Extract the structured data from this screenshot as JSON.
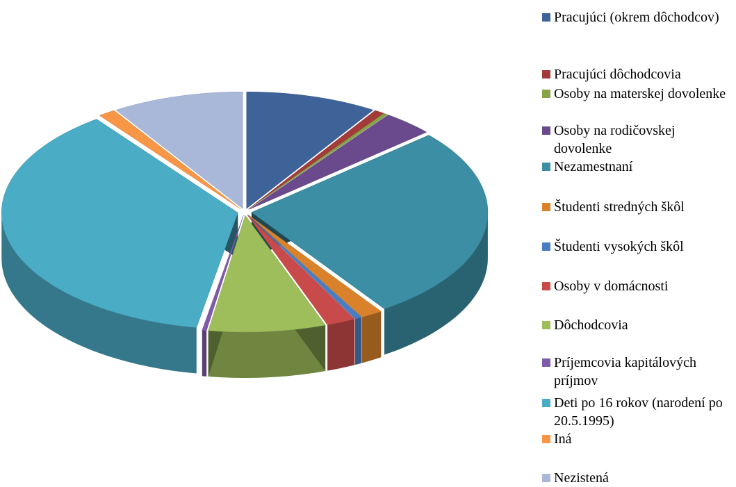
{
  "chart_data": {
    "type": "pie3d",
    "categories": [
      "Pracujúci (okrem dôchodcov)",
      "Pracujúci dôchodcovia",
      "Osoby na materskej dovolenke",
      "Osoby na rodičovskej dovolenke",
      "Nezamestnaní",
      "Študenti stredných škôl",
      "Študenti vysokých škôl",
      "Osoby v domácnosti",
      "Dôchodcovia",
      "Príjemcovia kapitálových príjmov",
      "Deti po 16 rokov (narodení po 20.5.1995)",
      "Iná",
      "Nezistená"
    ],
    "values": [
      9,
      0.7,
      0.3,
      3.5,
      27,
      1.5,
      0.5,
      2,
      8,
      0.3,
      37,
      1.2,
      9
    ],
    "colors": [
      "#3d6399",
      "#a33b3b",
      "#86a345",
      "#6a4a8c",
      "#3b8ea3",
      "#d9822b",
      "#4a7ec2",
      "#c94a4a",
      "#9ebe5b",
      "#7f5aa8",
      "#4bacc6",
      "#f79646",
      "#a9b8d8"
    ],
    "legend": "right"
  }
}
